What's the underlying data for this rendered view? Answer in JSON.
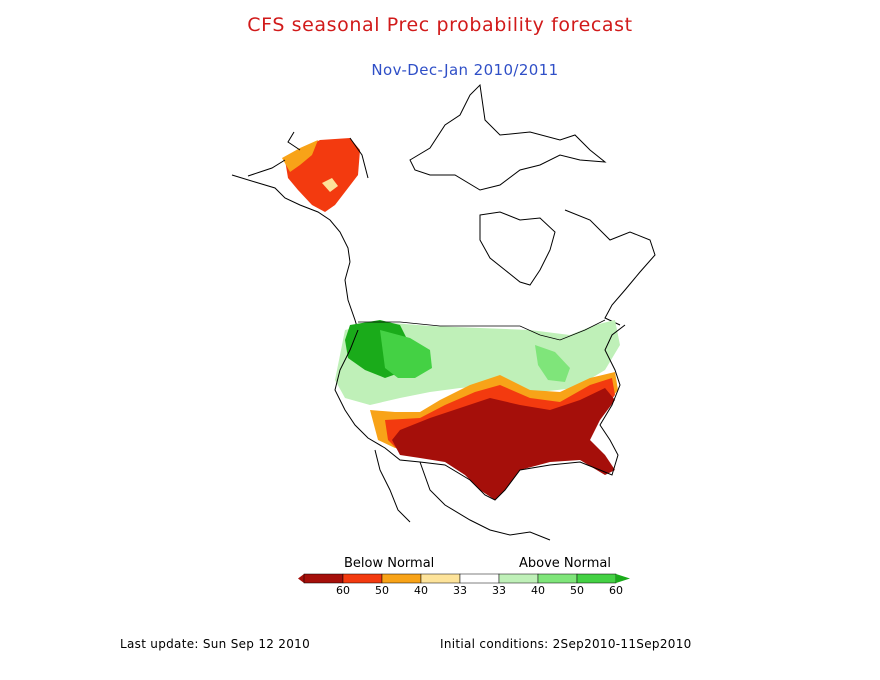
{
  "title": "CFS seasonal Prec probability forecast",
  "subtitle": "Nov-Dec-Jan 2010/2011",
  "legend": {
    "below_label": "Below Normal",
    "above_label": "Above Normal",
    "categories": [
      {
        "label": "60",
        "color": "#a50f0a"
      },
      {
        "label": "50",
        "color": "#f33a0f"
      },
      {
        "label": "40",
        "color": "#f8a318"
      },
      {
        "label": "33",
        "color": "#fde39a"
      },
      {
        "label": "33",
        "color": "#ffffff"
      },
      {
        "label": "40",
        "color": "#bff0b8"
      },
      {
        "label": "50",
        "color": "#7fe57a"
      },
      {
        "label": "60",
        "color": "#44d144"
      },
      {
        "label": "",
        "color": "#1aab1a"
      }
    ]
  },
  "map": {
    "region": "North America",
    "colors": {
      "strong_below": "#a50f0a",
      "below": "#f33a0f",
      "mod_below": "#f8a318",
      "weak_below": "#fde39a",
      "weak_above": "#bff0b8",
      "mod_above": "#7fe57a",
      "above": "#44d144",
      "strong_above": "#1aab1a",
      "coastline": "#000000"
    }
  },
  "footer": {
    "last_update": "Last update: Sun Sep 12 2010",
    "initial_conditions": "Initial conditions: 2Sep2010-11Sep2010"
  }
}
